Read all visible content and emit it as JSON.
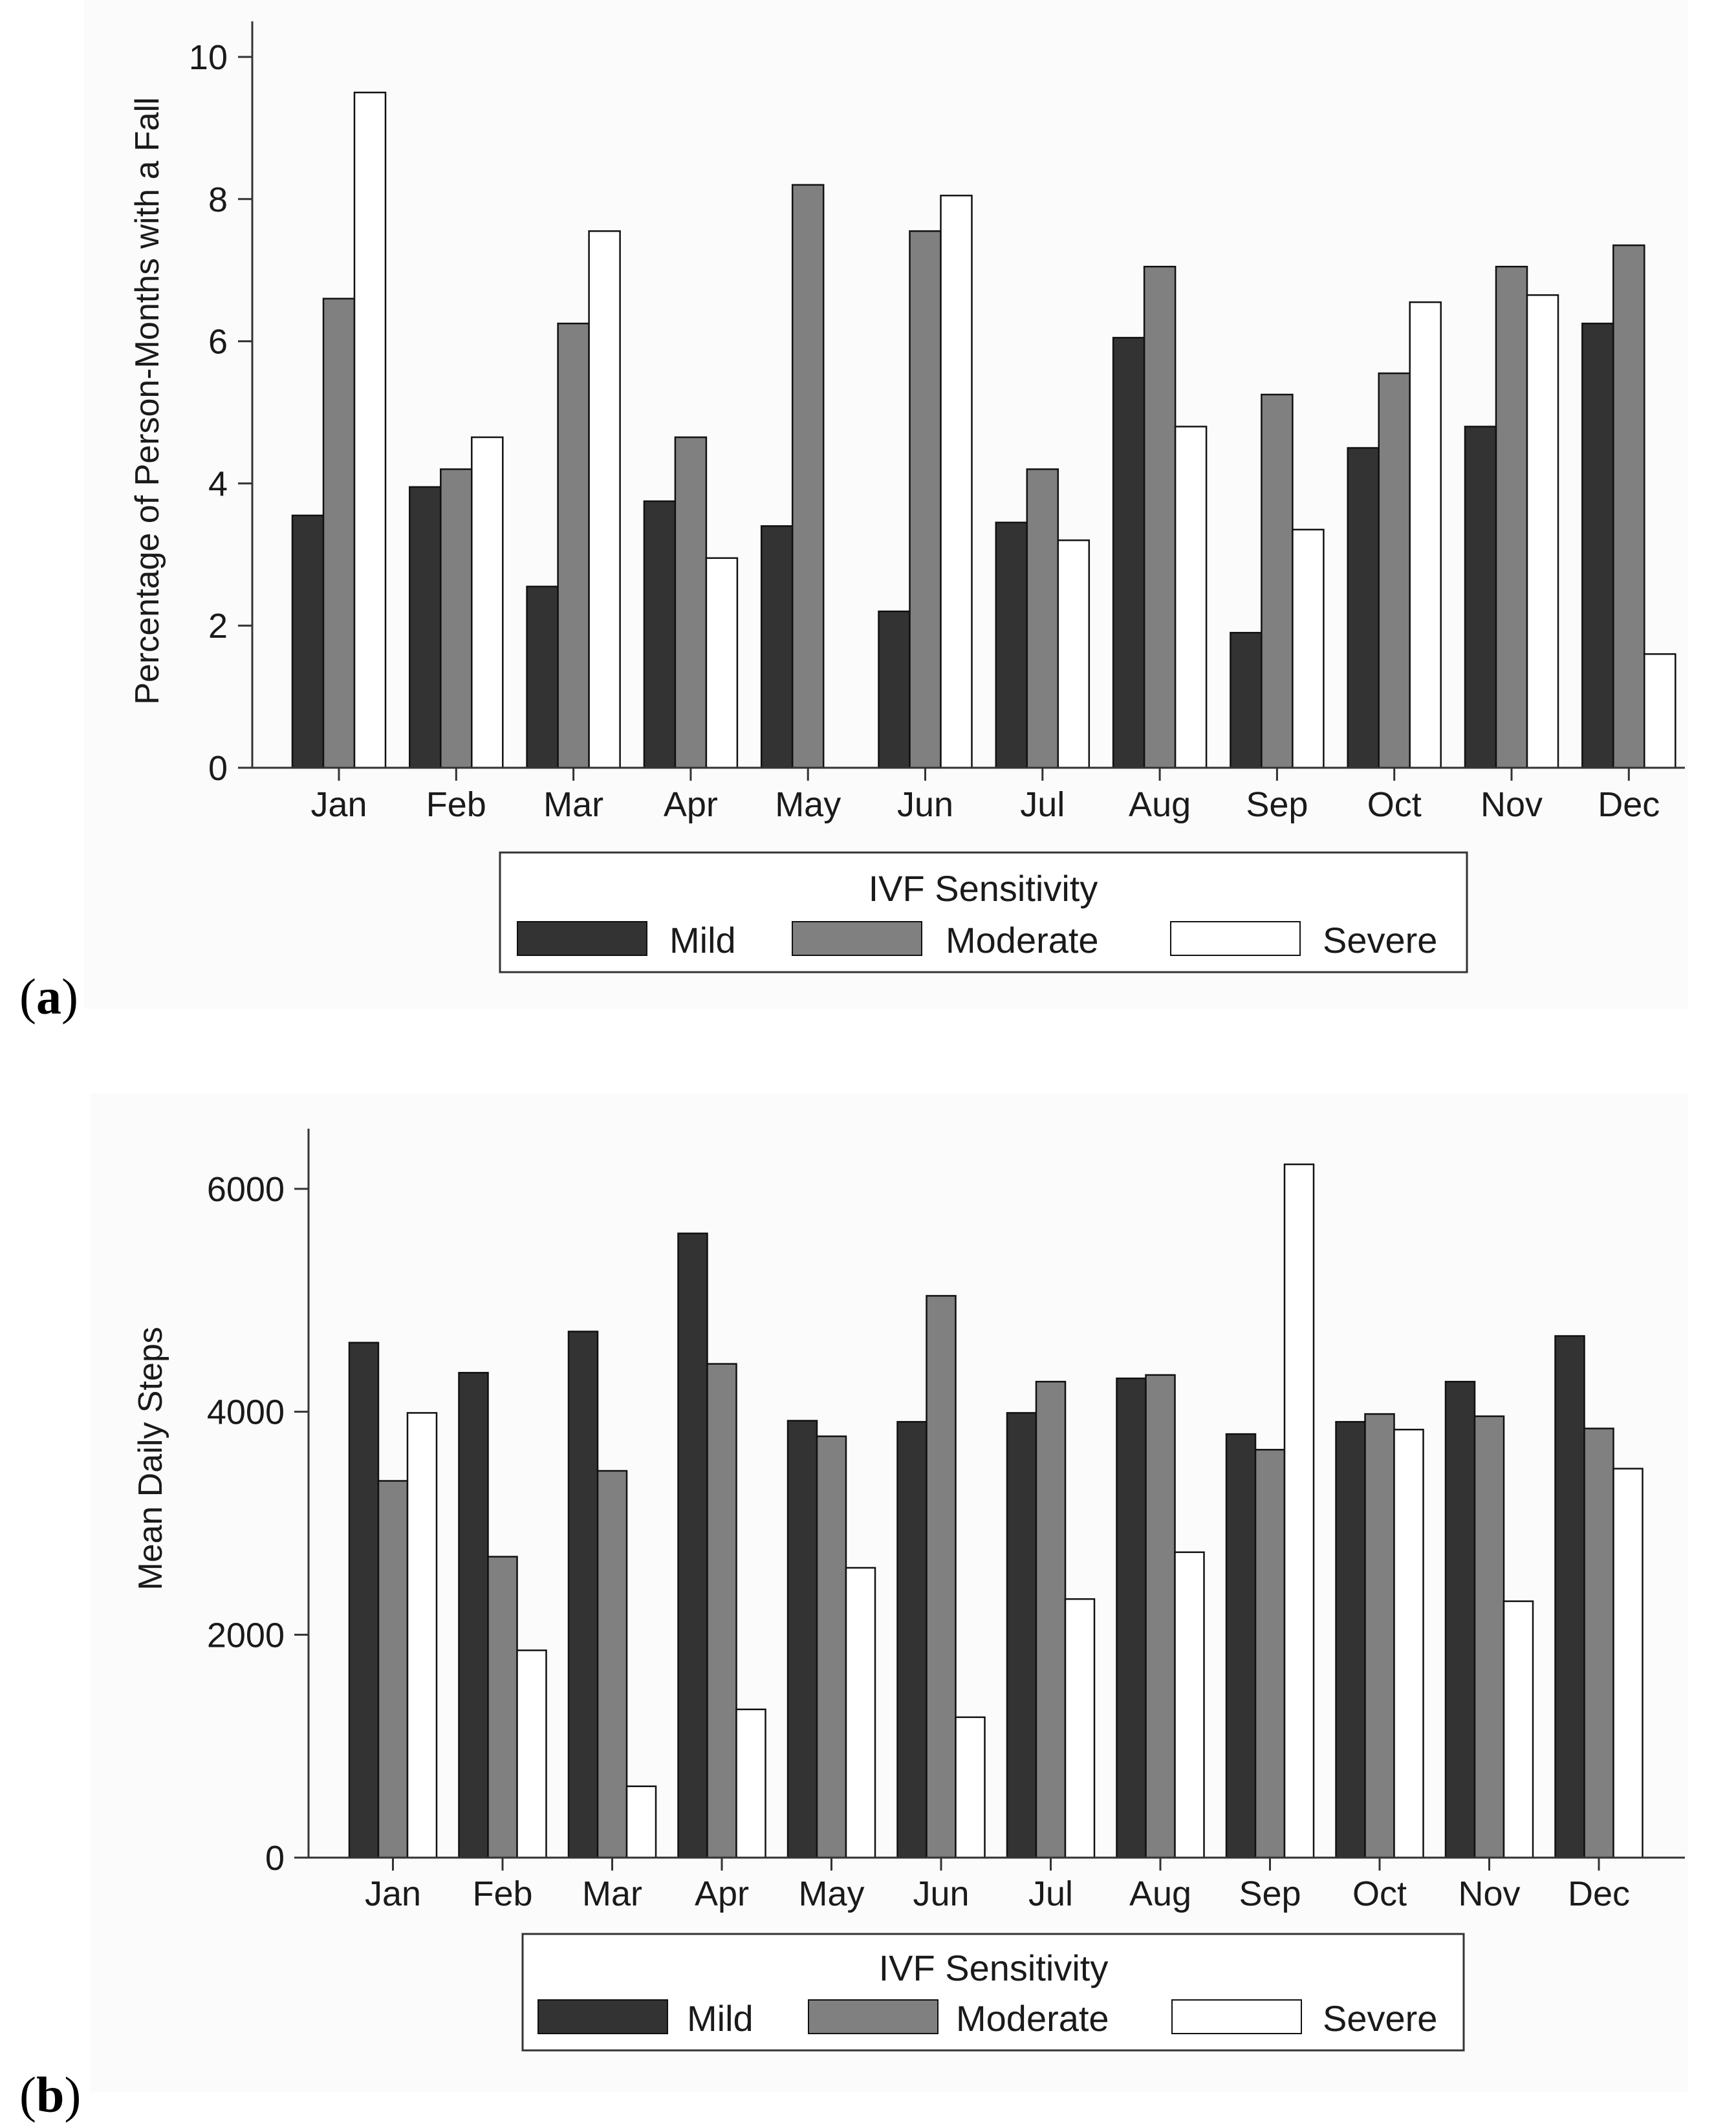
{
  "chart_data": [
    {
      "panel_label": "a",
      "type": "bar",
      "categories": [
        "Jan",
        "Feb",
        "Mar",
        "Apr",
        "May",
        "Jun",
        "Jul",
        "Aug",
        "Sep",
        "Oct",
        "Nov",
        "Dec"
      ],
      "ylabel": "Percentage of Person-Months with a Fall",
      "xlabel": "",
      "ylim": [
        0,
        10.3
      ],
      "yticks": [
        0,
        2,
        4,
        6,
        8,
        10
      ],
      "grid": false,
      "legend": {
        "title": "IVF Sensitivity",
        "position": "bottom"
      },
      "series": [
        {
          "name": "Mild",
          "color": "#333333",
          "values": [
            3.55,
            3.95,
            2.55,
            3.75,
            3.4,
            2.2,
            3.45,
            6.05,
            1.9,
            4.5,
            4.8,
            6.25
          ]
        },
        {
          "name": "Moderate",
          "color": "#808080",
          "values": [
            6.6,
            4.2,
            6.25,
            4.65,
            8.2,
            7.55,
            4.2,
            7.05,
            5.25,
            5.55,
            7.05,
            7.35
          ]
        },
        {
          "name": "Severe",
          "color": "#ffffff",
          "values": [
            9.5,
            4.65,
            7.55,
            2.95,
            0,
            8.05,
            3.2,
            4.8,
            3.35,
            6.55,
            6.65,
            1.6
          ]
        }
      ]
    },
    {
      "panel_label": "b",
      "type": "bar",
      "categories": [
        "Jan",
        "Feb",
        "Mar",
        "Apr",
        "May",
        "Jun",
        "Jul",
        "Aug",
        "Sep",
        "Oct",
        "Nov",
        "Dec"
      ],
      "ylabel": "Mean Daily Steps",
      "xlabel": "",
      "ylim": [
        0,
        6550
      ],
      "yticks": [
        0,
        2000,
        4000,
        6000
      ],
      "grid": false,
      "legend": {
        "title": "IVF Sensitivity",
        "position": "bottom"
      },
      "series": [
        {
          "name": "Mild",
          "color": "#333333",
          "values": [
            4620,
            4350,
            4720,
            5600,
            3920,
            3910,
            3990,
            4300,
            3800,
            3910,
            4270,
            4680
          ]
        },
        {
          "name": "Moderate",
          "color": "#808080",
          "values": [
            3380,
            2700,
            3470,
            4430,
            3780,
            5040,
            4270,
            4330,
            3660,
            3980,
            3960,
            3850
          ]
        },
        {
          "name": "Severe",
          "color": "#ffffff",
          "values": [
            3990,
            1860,
            640,
            1330,
            2600,
            1260,
            2320,
            2740,
            6220,
            3840,
            2300,
            3490
          ]
        }
      ]
    }
  ]
}
